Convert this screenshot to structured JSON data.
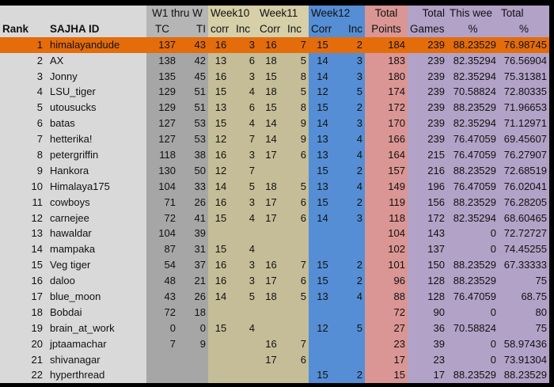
{
  "header": {
    "row1": {
      "rank": "",
      "id": "",
      "w1_thru": "W1 thru W",
      "week10": "Week10",
      "week11": "Week11",
      "week12": "Week12",
      "total_points": "Total",
      "total_games": "Total",
      "this_week": "This wee",
      "total_pct": "Total"
    },
    "row2": {
      "rank": "Rank",
      "id": "SAJHA ID",
      "tc": "TC",
      "ti": "TI",
      "w10_corr": "corr",
      "w10_inc": "Inc",
      "w11_corr": "Corr",
      "w11_inc": "Inc",
      "w12_corr": "Corr",
      "w12_inc": "Inc",
      "total_points": "Points",
      "total_games": "Games",
      "this_week": "%",
      "total_pct": "%"
    }
  },
  "colors": {
    "highlight": "#e46c0a",
    "id_col": "#d9d9d9",
    "w1_col": "#a6a6a6",
    "w10_11_col": "#c4bd97",
    "w12_col": "#558ed5",
    "points_col": "#da9694",
    "games_pct_col": "#b3a2c7"
  },
  "highlighted_rank": 1,
  "rows": [
    {
      "rank": "1",
      "id": "himalayandude",
      "tc": "137",
      "ti": "43",
      "c10": "16",
      "i10": "3",
      "c11": "16",
      "i11": "7",
      "c12": "15",
      "i12": "2",
      "pts": "184",
      "gms": "239",
      "tw": "88.23529",
      "tot": "76.98745"
    },
    {
      "rank": "2",
      "id": "AX",
      "tc": "138",
      "ti": "42",
      "c10": "13",
      "i10": "6",
      "c11": "18",
      "i11": "5",
      "c12": "14",
      "i12": "3",
      "pts": "183",
      "gms": "239",
      "tw": "82.35294",
      "tot": "76.56904"
    },
    {
      "rank": "3",
      "id": "Jonny",
      "tc": "135",
      "ti": "45",
      "c10": "16",
      "i10": "3",
      "c11": "15",
      "i11": "8",
      "c12": "14",
      "i12": "3",
      "pts": "180",
      "gms": "239",
      "tw": "82.35294",
      "tot": "75.31381"
    },
    {
      "rank": "4",
      "id": "LSU_tiger",
      "tc": "129",
      "ti": "51",
      "c10": "15",
      "i10": "4",
      "c11": "18",
      "i11": "5",
      "c12": "12",
      "i12": "5",
      "pts": "174",
      "gms": "239",
      "tw": "70.58824",
      "tot": "72.80335"
    },
    {
      "rank": "5",
      "id": "utousucks",
      "tc": "129",
      "ti": "51",
      "c10": "13",
      "i10": "6",
      "c11": "15",
      "i11": "8",
      "c12": "15",
      "i12": "2",
      "pts": "172",
      "gms": "239",
      "tw": "88.23529",
      "tot": "71.96653"
    },
    {
      "rank": "6",
      "id": "batas",
      "tc": "127",
      "ti": "53",
      "c10": "15",
      "i10": "4",
      "c11": "14",
      "i11": "9",
      "c12": "14",
      "i12": "3",
      "pts": "170",
      "gms": "239",
      "tw": "82.35294",
      "tot": "71.12971"
    },
    {
      "rank": "7",
      "id": "hetterika!",
      "tc": "127",
      "ti": "53",
      "c10": "12",
      "i10": "7",
      "c11": "14",
      "i11": "9",
      "c12": "13",
      "i12": "4",
      "pts": "166",
      "gms": "239",
      "tw": "76.47059",
      "tot": "69.45607"
    },
    {
      "rank": "8",
      "id": "petergriffin",
      "tc": "118",
      "ti": "38",
      "c10": "16",
      "i10": "3",
      "c11": "17",
      "i11": "6",
      "c12": "13",
      "i12": "4",
      "pts": "164",
      "gms": "215",
      "tw": "76.47059",
      "tot": "76.27907"
    },
    {
      "rank": "9",
      "id": "Hankora",
      "tc": "130",
      "ti": "50",
      "c10": "12",
      "i10": "7",
      "c11": "",
      "i11": "",
      "c12": "15",
      "i12": "2",
      "pts": "157",
      "gms": "216",
      "tw": "88.23529",
      "tot": "72.68519"
    },
    {
      "rank": "10",
      "id": "Himalaya175",
      "tc": "104",
      "ti": "33",
      "c10": "14",
      "i10": "5",
      "c11": "18",
      "i11": "5",
      "c12": "13",
      "i12": "4",
      "pts": "149",
      "gms": "196",
      "tw": "76.47059",
      "tot": "76.02041"
    },
    {
      "rank": "11",
      "id": "cowboys",
      "tc": "71",
      "ti": "26",
      "c10": "16",
      "i10": "3",
      "c11": "17",
      "i11": "6",
      "c12": "15",
      "i12": "2",
      "pts": "119",
      "gms": "156",
      "tw": "88.23529",
      "tot": "76.28205"
    },
    {
      "rank": "12",
      "id": "carnejee",
      "tc": "72",
      "ti": "41",
      "c10": "15",
      "i10": "4",
      "c11": "17",
      "i11": "6",
      "c12": "14",
      "i12": "3",
      "pts": "118",
      "gms": "172",
      "tw": "82.35294",
      "tot": "68.60465"
    },
    {
      "rank": "13",
      "id": "hawaldar",
      "tc": "104",
      "ti": "39",
      "c10": "",
      "i10": "",
      "c11": "",
      "i11": "",
      "c12": "",
      "i12": "",
      "pts": "104",
      "gms": "143",
      "tw": "0",
      "tot": "72.72727"
    },
    {
      "rank": "14",
      "id": "mampaka",
      "tc": "87",
      "ti": "31",
      "c10": "15",
      "i10": "4",
      "c11": "",
      "i11": "",
      "c12": "",
      "i12": "",
      "pts": "102",
      "gms": "137",
      "tw": "0",
      "tot": "74.45255"
    },
    {
      "rank": "15",
      "id": "Veg tiger",
      "tc": "54",
      "ti": "37",
      "c10": "16",
      "i10": "3",
      "c11": "16",
      "i11": "7",
      "c12": "15",
      "i12": "2",
      "pts": "101",
      "gms": "150",
      "tw": "88.23529",
      "tot": "67.33333"
    },
    {
      "rank": "16",
      "id": "daloo",
      "tc": "48",
      "ti": "21",
      "c10": "16",
      "i10": "3",
      "c11": "17",
      "i11": "6",
      "c12": "15",
      "i12": "2",
      "pts": "96",
      "gms": "128",
      "tw": "88.23529",
      "tot": "75"
    },
    {
      "rank": "17",
      "id": "blue_moon",
      "tc": "43",
      "ti": "26",
      "c10": "14",
      "i10": "5",
      "c11": "18",
      "i11": "5",
      "c12": "13",
      "i12": "4",
      "pts": "88",
      "gms": "128",
      "tw": "76.47059",
      "tot": "68.75"
    },
    {
      "rank": "18",
      "id": "Bobdai",
      "tc": "72",
      "ti": "18",
      "c10": "",
      "i10": "",
      "c11": "",
      "i11": "",
      "c12": "",
      "i12": "",
      "pts": "72",
      "gms": "90",
      "tw": "0",
      "tot": "80"
    },
    {
      "rank": "19",
      "id": "brain_at_work",
      "tc": "0",
      "ti": "0",
      "c10": "15",
      "i10": "4",
      "c11": "",
      "i11": "",
      "c12": "12",
      "i12": "5",
      "pts": "27",
      "gms": "36",
      "tw": "70.58824",
      "tot": "75"
    },
    {
      "rank": "20",
      "id": "jptaamachar",
      "tc": "7",
      "ti": "9",
      "c10": "",
      "i10": "",
      "c11": "16",
      "i11": "7",
      "c12": "",
      "i12": "",
      "pts": "23",
      "gms": "39",
      "tw": "0",
      "tot": "58.97436"
    },
    {
      "rank": "21",
      "id": "shivanagar",
      "tc": "",
      "ti": "",
      "c10": "",
      "i10": "",
      "c11": "17",
      "i11": "6",
      "c12": "",
      "i12": "",
      "pts": "17",
      "gms": "23",
      "tw": "0",
      "tot": "73.91304"
    },
    {
      "rank": "22",
      "id": "hyperthread",
      "tc": "",
      "ti": "",
      "c10": "",
      "i10": "",
      "c11": "",
      "i11": "",
      "c12": "15",
      "i12": "2",
      "pts": "15",
      "gms": "17",
      "tw": "88.23529",
      "tot": "88.23529"
    }
  ]
}
